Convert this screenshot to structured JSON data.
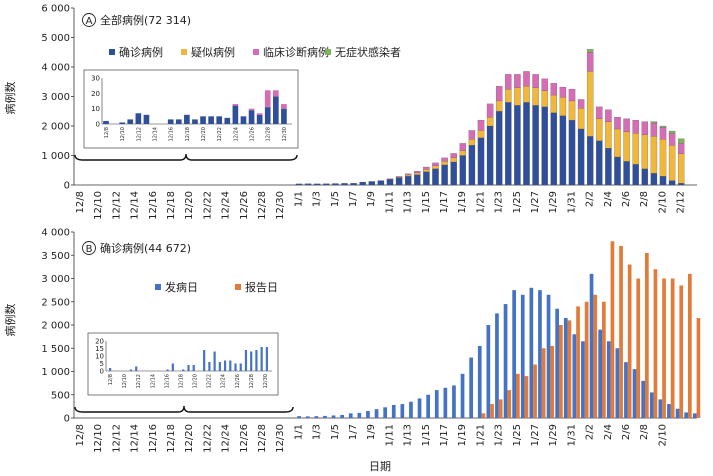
{
  "colors": {
    "confirmed": "#2f4f9a",
    "suspected": "#f0b73a",
    "clinical": "#d66bb6",
    "asymptomatic": "#7fb35a",
    "onset": "#4472c4",
    "report": "#e07b39",
    "axis": "#333333"
  },
  "chart_data": [
    {
      "type": "bar",
      "stacked": true,
      "panel_letter": "A",
      "title": "全部病例(72 314)",
      "ylabel": "病例数",
      "ylim": [
        0,
        6000
      ],
      "yticks": [
        "0",
        "1 000",
        "2 000",
        "3 000",
        "4 000",
        "5 000",
        "6 000"
      ],
      "xtick_labels": [
        "12/8",
        "12/10",
        "12/12",
        "12/14",
        "12/16",
        "12/18",
        "12/20",
        "12/22",
        "12/24",
        "12/26",
        "12/28",
        "12/30",
        "1/1",
        "1/3",
        "1/5",
        "1/7",
        "1/9",
        "1/11",
        "1/13",
        "1/15",
        "1/17",
        "1/19",
        "1/21",
        "1/23",
        "1/25",
        "1/27",
        "1/29",
        "1/31",
        "2/2",
        "2/4",
        "2/6",
        "2/8",
        "2/10",
        "2/12"
      ],
      "legend_position": "top-left",
      "series": [
        {
          "name": "确诊病例",
          "color_key": "confirmed",
          "dec_values": [
            2,
            0,
            1,
            3,
            7,
            6,
            0,
            0,
            3,
            3,
            6,
            3,
            5,
            5,
            5,
            4,
            12,
            5,
            9,
            6,
            11,
            18,
            10,
            11,
            18,
            14
          ],
          "jan_values": [
            38,
            45,
            40,
            45,
            50,
            55,
            60,
            100,
            120,
            150,
            200,
            250,
            300,
            350,
            450,
            550,
            680,
            780,
            1000,
            1350,
            1600,
            2000,
            2500,
            2800,
            2700,
            2800,
            2700,
            2650,
            2450,
            2350,
            2200,
            1900,
            1650,
            1500,
            1250,
            950,
            800,
            700,
            550,
            400,
            300,
            150,
            60
          ]
        },
        {
          "name": "疑似病例",
          "color_key": "suspected",
          "dec_values": [
            0,
            0,
            0,
            0,
            0,
            0,
            0,
            0,
            0,
            0,
            0,
            0,
            0,
            0,
            0,
            0,
            0,
            0,
            0,
            0,
            0,
            0,
            0,
            0,
            0,
            0
          ],
          "jan_values": [
            0,
            0,
            0,
            0,
            0,
            0,
            0,
            0,
            0,
            0,
            0,
            20,
            40,
            60,
            80,
            100,
            120,
            140,
            160,
            200,
            250,
            300,
            350,
            450,
            600,
            550,
            600,
            550,
            600,
            620,
            650,
            700,
            2200,
            750,
            900,
            950,
            1000,
            1050,
            1150,
            1250,
            1250,
            1200,
            1000
          ]
        },
        {
          "name": "临床诊断病例",
          "color_key": "clinical",
          "dec_values": [
            0,
            0,
            0,
            0,
            0,
            0,
            0,
            0,
            0,
            0,
            0,
            0,
            0,
            0,
            0,
            0,
            1,
            0,
            1,
            1,
            11,
            4,
            3,
            4,
            4,
            3
          ],
          "jan_values": [
            0,
            0,
            0,
            0,
            0,
            0,
            0,
            0,
            0,
            0,
            10,
            20,
            40,
            60,
            80,
            100,
            120,
            150,
            250,
            300,
            350,
            450,
            500,
            500,
            450,
            500,
            450,
            400,
            400,
            350,
            400,
            300,
            650,
            400,
            400,
            400,
            450,
            450,
            450,
            450,
            400,
            400,
            350
          ]
        },
        {
          "name": "无症状感染者",
          "color_key": "asymptomatic",
          "dec_values": [
            0,
            0,
            0,
            0,
            0,
            0,
            0,
            0,
            0,
            0,
            0,
            0,
            0,
            0,
            0,
            0,
            0,
            0,
            0,
            0,
            0,
            0,
            0,
            0,
            0,
            0
          ],
          "jan_values": [
            0,
            0,
            0,
            0,
            0,
            0,
            0,
            0,
            0,
            0,
            0,
            0,
            0,
            0,
            0,
            0,
            0,
            0,
            0,
            0,
            0,
            0,
            0,
            0,
            0,
            0,
            0,
            0,
            0,
            0,
            0,
            0,
            100,
            0,
            0,
            0,
            0,
            0,
            0,
            50,
            50,
            80,
            160
          ]
        }
      ],
      "inset": {
        "ylim": [
          0,
          30
        ],
        "yticks": [
          "0",
          "10",
          "20",
          "30"
        ],
        "xtick_labels": [
          "12/8",
          "12/10",
          "12/12",
          "12/14",
          "12/16",
          "12/18",
          "12/20",
          "12/22",
          "12/24",
          "12/26",
          "12/28",
          "12/30"
        ]
      }
    },
    {
      "type": "bar",
      "stacked": false,
      "panel_letter": "B",
      "title": "确诊病例(44 672)",
      "ylabel": "病例数",
      "xlabel": "日期",
      "ylim": [
        0,
        4000
      ],
      "yticks": [
        "0",
        "500",
        "1 000",
        "1 500",
        "2 000",
        "2 500",
        "3 000",
        "3 500",
        "4 000"
      ],
      "xtick_labels": [
        "12/8",
        "12/10",
        "12/12",
        "12/14",
        "12/16",
        "12/18",
        "12/20",
        "12/22",
        "12/24",
        "12/26",
        "12/28",
        "12/30",
        "1/1",
        "1/3",
        "1/5",
        "1/7",
        "1/9",
        "1/11",
        "1/13",
        "1/15",
        "1/17",
        "1/19",
        "1/21",
        "1/23",
        "1/25",
        "1/27",
        "1/29",
        "1/31",
        "2/2",
        "2/4",
        "2/6",
        "2/8",
        "2/10"
      ],
      "legend_position": "top-left",
      "series": [
        {
          "name": "发病日",
          "color_key": "onset",
          "dec_values": [
            2,
            0,
            0,
            0,
            1,
            3,
            0,
            0,
            0,
            0,
            0,
            1,
            5,
            0,
            1,
            4,
            4,
            0,
            14,
            6,
            13,
            6,
            7,
            7,
            5,
            5,
            14,
            13,
            14,
            16,
            16
          ],
          "jan_values": [
            40,
            35,
            40,
            45,
            55,
            65,
            100,
            110,
            150,
            190,
            230,
            280,
            300,
            350,
            420,
            500,
            600,
            650,
            700,
            950,
            1300,
            1550,
            2000,
            2250,
            2450,
            2750,
            2650,
            2800,
            2750,
            2650,
            2350,
            2150,
            1800,
            1650,
            3100,
            1900,
            1650,
            1500,
            1200,
            1050,
            800,
            550,
            400,
            300,
            200,
            120,
            100
          ]
        },
        {
          "name": "报告日",
          "color_key": "report",
          "dec_values": [
            0,
            0,
            0,
            0,
            0,
            0,
            0,
            0,
            0,
            0,
            0,
            0,
            0,
            0,
            0,
            0,
            0,
            0,
            0,
            0,
            0,
            0,
            0,
            0,
            0,
            0,
            0,
            0,
            0,
            0,
            0
          ],
          "jan_values": [
            0,
            0,
            0,
            0,
            0,
            0,
            0,
            0,
            0,
            0,
            0,
            0,
            0,
            0,
            0,
            0,
            0,
            0,
            0,
            0,
            0,
            100,
            300,
            400,
            600,
            950,
            900,
            1150,
            1500,
            1550,
            2000,
            2100,
            2400,
            2500,
            2650,
            2500,
            3800,
            3700,
            3300,
            3000,
            3550,
            3200,
            3000,
            3000,
            2850,
            3100,
            2150
          ]
        }
      ],
      "inset": {
        "ylim": [
          0,
          20
        ],
        "yticks": [
          "0",
          "5",
          "10",
          "15",
          "20"
        ],
        "xtick_labels": [
          "12/8",
          "12/10",
          "12/12",
          "12/14",
          "12/16",
          "12/18",
          "12/20",
          "12/22",
          "12/24",
          "12/26",
          "12/28",
          "12/30"
        ]
      }
    }
  ]
}
